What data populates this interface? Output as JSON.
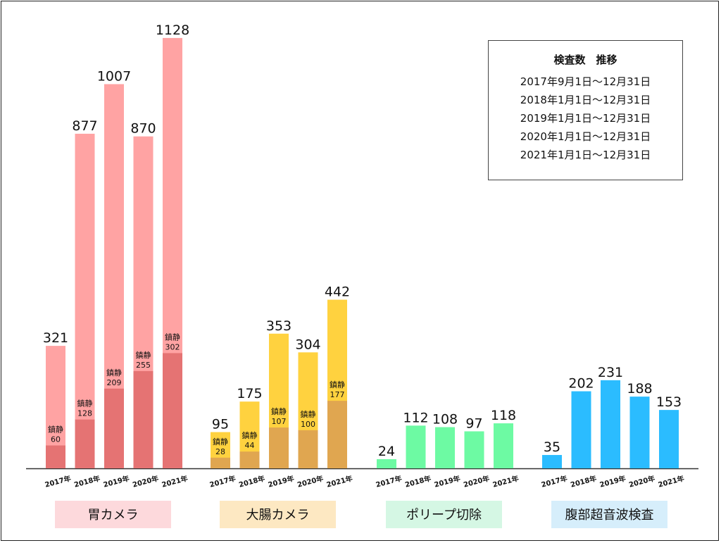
{
  "legend": {
    "title": "検査数　推移",
    "periods": [
      "2017年9月1日～12月31日",
      "2018年1月1日～12月31日",
      "2019年1月1日～12月31日",
      "2020年1月1日～12月31日",
      "2021年1月1日～12月31日"
    ]
  },
  "chart_data": {
    "type": "bar",
    "years": [
      "2017年",
      "2018年",
      "2019年",
      "2020年",
      "2021年"
    ],
    "sedation_label": "鎮静",
    "ylim": [
      0,
      1150
    ],
    "grid": false,
    "groups": [
      {
        "name": "胃カメラ",
        "values": [
          321,
          877,
          1007,
          870,
          1128
        ],
        "sedation": [
          60,
          128,
          209,
          255,
          302
        ],
        "color": "#ffa3a3",
        "sedation_color": "#e57373",
        "label_bg": "#fdd9dc"
      },
      {
        "name": "大腸カメラ",
        "values": [
          95,
          175,
          353,
          304,
          442
        ],
        "sedation": [
          28,
          44,
          107,
          100,
          177
        ],
        "color": "#ffd23f",
        "sedation_color": "#e0a650",
        "label_bg": "#fde8c2"
      },
      {
        "name": "ポリープ切除",
        "values": [
          24,
          112,
          108,
          97,
          118
        ],
        "color": "#6dfaa3",
        "label_bg": "#d5f7e4"
      },
      {
        "name": "腹部超音波検査",
        "values": [
          35,
          202,
          231,
          188,
          153
        ],
        "color": "#2bbcff",
        "label_bg": "#d6eefb"
      }
    ]
  }
}
